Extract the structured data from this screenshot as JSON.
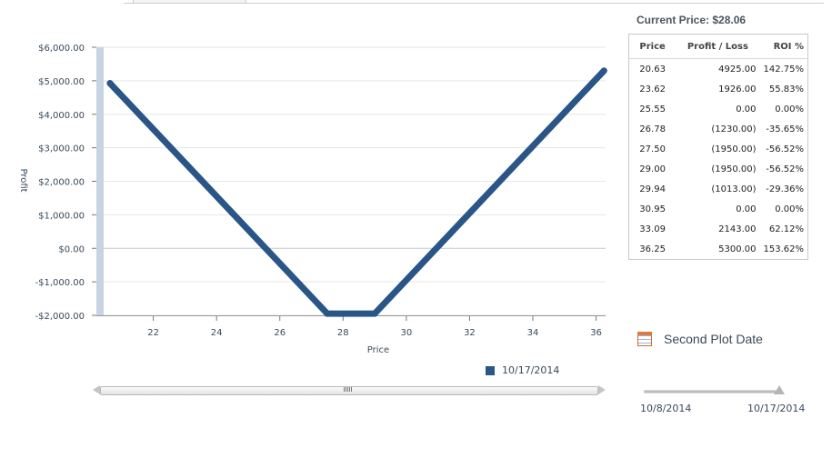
{
  "header": {
    "current_price_label": "Current Price: $28.06"
  },
  "colors": {
    "series": "#2a5587",
    "grid": "#e6e6e6",
    "zero_line": "#c0c8d0",
    "navigator": "#c8d4e3",
    "positive": "#1a8a1a",
    "negative": "#cc0000"
  },
  "table": {
    "headers": [
      "Price",
      "Profit / Loss",
      "ROI %"
    ],
    "rows": [
      {
        "price": "20.63",
        "pl": "4925.00",
        "roi": "142.75%",
        "sign": "pos"
      },
      {
        "price": "23.62",
        "pl": "1926.00",
        "roi": "55.83%",
        "sign": "pos"
      },
      {
        "price": "25.55",
        "pl": "0.00",
        "roi": "0.00%",
        "sign": "zero"
      },
      {
        "price": "26.78",
        "pl": "(1230.00)",
        "roi": "-35.65%",
        "sign": "neg"
      },
      {
        "price": "27.50",
        "pl": "(1950.00)",
        "roi": "-56.52%",
        "sign": "neg"
      },
      {
        "price": "29.00",
        "pl": "(1950.00)",
        "roi": "-56.52%",
        "sign": "neg"
      },
      {
        "price": "29.94",
        "pl": "(1013.00)",
        "roi": "-29.36%",
        "sign": "neg"
      },
      {
        "price": "30.95",
        "pl": "0.00",
        "roi": "0.00%",
        "sign": "zero"
      },
      {
        "price": "33.09",
        "pl": "2143.00",
        "roi": "62.12%",
        "sign": "pos"
      },
      {
        "price": "36.25",
        "pl": "5300.00",
        "roi": "153.62%",
        "sign": "pos"
      }
    ]
  },
  "second_plot": {
    "label": "Second Plot Date",
    "icon": "calendar-icon"
  },
  "date_slider": {
    "start": "10/8/2014",
    "end": "10/17/2014",
    "position": 1.0
  },
  "chart_data": {
    "type": "line",
    "xlabel": "Price",
    "ylabel": "Profit",
    "xlim": [
      20.2,
      36.3
    ],
    "ylim": [
      -2000,
      6000
    ],
    "xticks": [
      22,
      24,
      26,
      28,
      30,
      32,
      34,
      36
    ],
    "yticks": [
      {
        "value": 6000,
        "label": "$6,000.00"
      },
      {
        "value": 5000,
        "label": "$5,000.00"
      },
      {
        "value": 4000,
        "label": "$4,000.00"
      },
      {
        "value": 3000,
        "label": "$3,000.00"
      },
      {
        "value": 2000,
        "label": "$2,000.00"
      },
      {
        "value": 1000,
        "label": "$1,000.00"
      },
      {
        "value": 0,
        "label": "$0.00"
      },
      {
        "value": -1000,
        "label": "-$1,000.00"
      },
      {
        "value": -2000,
        "label": "-$2,000.00"
      }
    ],
    "grid": true,
    "series": [
      {
        "name": "10/17/2014",
        "points": [
          {
            "x": 20.63,
            "y": 4925
          },
          {
            "x": 27.5,
            "y": -1950
          },
          {
            "x": 29.0,
            "y": -1950
          },
          {
            "x": 36.25,
            "y": 5300
          }
        ]
      }
    ],
    "legend": "bottom"
  }
}
